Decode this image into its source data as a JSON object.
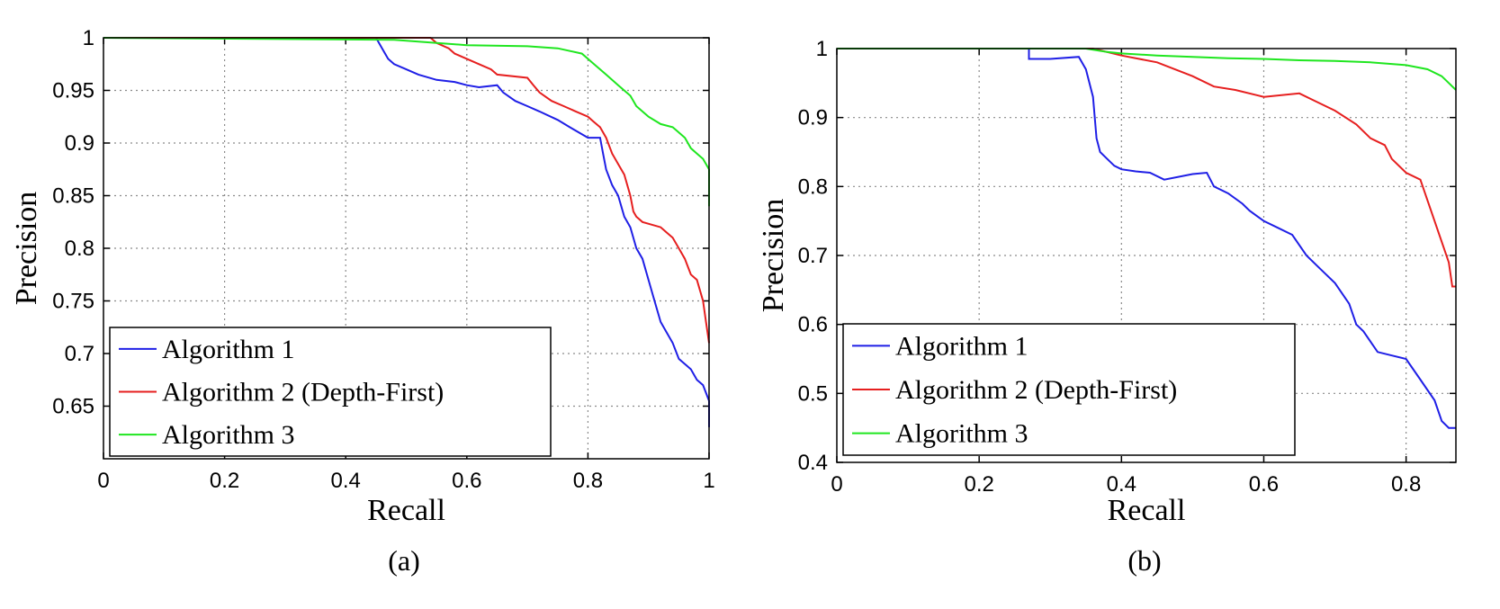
{
  "chart_data": [
    {
      "type": "line",
      "caption": "(a)",
      "xlabel": "Recall",
      "ylabel": "Precision",
      "xlim": [
        0,
        1
      ],
      "ylim": [
        0.6,
        1
      ],
      "xticks": [
        "0",
        "0.2",
        "0.4",
        "0.6",
        "0.8",
        "1"
      ],
      "yticks": [
        "0.65",
        "0.7",
        "0.75",
        "0.8",
        "0.85",
        "0.9",
        "0.95",
        "1"
      ],
      "grid": true,
      "legend_position": "bottom-left",
      "series": [
        {
          "name": "Algorithm 1",
          "color": "#1f1fe6",
          "points": [
            [
              0,
              1
            ],
            [
              0.45,
              1
            ],
            [
              0.46,
              0.99
            ],
            [
              0.47,
              0.98
            ],
            [
              0.48,
              0.975
            ],
            [
              0.5,
              0.97
            ],
            [
              0.52,
              0.965
            ],
            [
              0.55,
              0.96
            ],
            [
              0.58,
              0.958
            ],
            [
              0.6,
              0.955
            ],
            [
              0.62,
              0.953
            ],
            [
              0.65,
              0.955
            ],
            [
              0.66,
              0.948
            ],
            [
              0.68,
              0.94
            ],
            [
              0.7,
              0.935
            ],
            [
              0.72,
              0.93
            ],
            [
              0.75,
              0.922
            ],
            [
              0.77,
              0.915
            ],
            [
              0.8,
              0.905
            ],
            [
              0.82,
              0.905
            ],
            [
              0.825,
              0.89
            ],
            [
              0.83,
              0.875
            ],
            [
              0.84,
              0.86
            ],
            [
              0.85,
              0.85
            ],
            [
              0.86,
              0.83
            ],
            [
              0.87,
              0.82
            ],
            [
              0.88,
              0.8
            ],
            [
              0.89,
              0.79
            ],
            [
              0.9,
              0.77
            ],
            [
              0.91,
              0.75
            ],
            [
              0.92,
              0.73
            ],
            [
              0.93,
              0.72
            ],
            [
              0.94,
              0.71
            ],
            [
              0.95,
              0.695
            ],
            [
              0.97,
              0.685
            ],
            [
              0.98,
              0.675
            ],
            [
              0.99,
              0.67
            ],
            [
              1.0,
              0.655
            ],
            [
              1.0,
              0.63
            ]
          ]
        },
        {
          "name": "Algorithm 2 (Depth-First)",
          "color": "#e61f1f",
          "points": [
            [
              0,
              1
            ],
            [
              0.54,
              1
            ],
            [
              0.55,
              0.995
            ],
            [
              0.57,
              0.99
            ],
            [
              0.58,
              0.985
            ],
            [
              0.6,
              0.98
            ],
            [
              0.62,
              0.975
            ],
            [
              0.64,
              0.97
            ],
            [
              0.65,
              0.965
            ],
            [
              0.7,
              0.962
            ],
            [
              0.71,
              0.955
            ],
            [
              0.72,
              0.948
            ],
            [
              0.74,
              0.94
            ],
            [
              0.76,
              0.935
            ],
            [
              0.78,
              0.93
            ],
            [
              0.8,
              0.925
            ],
            [
              0.81,
              0.92
            ],
            [
              0.82,
              0.915
            ],
            [
              0.83,
              0.905
            ],
            [
              0.84,
              0.89
            ],
            [
              0.85,
              0.88
            ],
            [
              0.86,
              0.87
            ],
            [
              0.87,
              0.85
            ],
            [
              0.875,
              0.835
            ],
            [
              0.88,
              0.83
            ],
            [
              0.89,
              0.825
            ],
            [
              0.92,
              0.82
            ],
            [
              0.93,
              0.815
            ],
            [
              0.94,
              0.81
            ],
            [
              0.95,
              0.8
            ],
            [
              0.96,
              0.79
            ],
            [
              0.97,
              0.775
            ],
            [
              0.98,
              0.77
            ],
            [
              0.99,
              0.75
            ],
            [
              0.995,
              0.73
            ],
            [
              1.0,
              0.71
            ]
          ]
        },
        {
          "name": "Algorithm 3",
          "color": "#1fe61f",
          "points": [
            [
              0,
              1
            ],
            [
              0.48,
              0.998
            ],
            [
              0.55,
              0.995
            ],
            [
              0.6,
              0.993
            ],
            [
              0.7,
              0.992
            ],
            [
              0.75,
              0.99
            ],
            [
              0.79,
              0.985
            ],
            [
              0.81,
              0.975
            ],
            [
              0.83,
              0.965
            ],
            [
              0.85,
              0.955
            ],
            [
              0.87,
              0.945
            ],
            [
              0.88,
              0.935
            ],
            [
              0.9,
              0.925
            ],
            [
              0.92,
              0.918
            ],
            [
              0.94,
              0.915
            ],
            [
              0.95,
              0.91
            ],
            [
              0.96,
              0.905
            ],
            [
              0.97,
              0.895
            ],
            [
              0.98,
              0.89
            ],
            [
              0.99,
              0.885
            ],
            [
              1.0,
              0.875
            ],
            [
              1.0,
              0.84
            ]
          ]
        }
      ]
    },
    {
      "type": "line",
      "caption": "(b)",
      "xlabel": "Recall",
      "ylabel": "Precision",
      "xlim": [
        0,
        0.87
      ],
      "ylim": [
        0.4,
        1
      ],
      "xticks": [
        "0",
        "0.2",
        "0.4",
        "0.6",
        "0.8"
      ],
      "yticks": [
        "0.4",
        "0.5",
        "0.6",
        "0.7",
        "0.8",
        "0.9",
        "1"
      ],
      "grid": true,
      "legend_position": "bottom-left",
      "series": [
        {
          "name": "Algorithm 1",
          "color": "#1f1fe6",
          "points": [
            [
              0,
              1
            ],
            [
              0.27,
              1
            ],
            [
              0.27,
              0.985
            ],
            [
              0.3,
              0.985
            ],
            [
              0.34,
              0.988
            ],
            [
              0.35,
              0.97
            ],
            [
              0.36,
              0.93
            ],
            [
              0.365,
              0.87
            ],
            [
              0.37,
              0.85
            ],
            [
              0.38,
              0.84
            ],
            [
              0.39,
              0.83
            ],
            [
              0.4,
              0.825
            ],
            [
              0.42,
              0.822
            ],
            [
              0.44,
              0.82
            ],
            [
              0.46,
              0.81
            ],
            [
              0.5,
              0.818
            ],
            [
              0.52,
              0.82
            ],
            [
              0.53,
              0.8
            ],
            [
              0.55,
              0.79
            ],
            [
              0.57,
              0.775
            ],
            [
              0.58,
              0.765
            ],
            [
              0.6,
              0.75
            ],
            [
              0.62,
              0.74
            ],
            [
              0.64,
              0.73
            ],
            [
              0.66,
              0.7
            ],
            [
              0.68,
              0.68
            ],
            [
              0.7,
              0.66
            ],
            [
              0.72,
              0.63
            ],
            [
              0.73,
              0.6
            ],
            [
              0.74,
              0.59
            ],
            [
              0.76,
              0.56
            ],
            [
              0.78,
              0.555
            ],
            [
              0.8,
              0.55
            ],
            [
              0.82,
              0.52
            ],
            [
              0.84,
              0.49
            ],
            [
              0.85,
              0.46
            ],
            [
              0.86,
              0.45
            ],
            [
              0.87,
              0.45
            ]
          ]
        },
        {
          "name": "Algorithm 2 (Depth-First)",
          "color": "#e61f1f",
          "points": [
            [
              0,
              1
            ],
            [
              0.36,
              1
            ],
            [
              0.4,
              0.99
            ],
            [
              0.45,
              0.98
            ],
            [
              0.5,
              0.96
            ],
            [
              0.53,
              0.945
            ],
            [
              0.56,
              0.94
            ],
            [
              0.6,
              0.93
            ],
            [
              0.65,
              0.935
            ],
            [
              0.67,
              0.925
            ],
            [
              0.7,
              0.91
            ],
            [
              0.73,
              0.89
            ],
            [
              0.75,
              0.87
            ],
            [
              0.77,
              0.86
            ],
            [
              0.78,
              0.84
            ],
            [
              0.8,
              0.82
            ],
            [
              0.82,
              0.81
            ],
            [
              0.83,
              0.78
            ],
            [
              0.84,
              0.75
            ],
            [
              0.85,
              0.72
            ],
            [
              0.86,
              0.69
            ],
            [
              0.865,
              0.655
            ],
            [
              0.87,
              0.655
            ]
          ]
        },
        {
          "name": "Algorithm 3",
          "color": "#1fe61f",
          "points": [
            [
              0,
              1
            ],
            [
              0.35,
              1
            ],
            [
              0.38,
              0.995
            ],
            [
              0.4,
              0.993
            ],
            [
              0.45,
              0.99
            ],
            [
              0.5,
              0.988
            ],
            [
              0.55,
              0.986
            ],
            [
              0.6,
              0.985
            ],
            [
              0.65,
              0.983
            ],
            [
              0.7,
              0.982
            ],
            [
              0.75,
              0.98
            ],
            [
              0.8,
              0.976
            ],
            [
              0.83,
              0.97
            ],
            [
              0.85,
              0.96
            ],
            [
              0.86,
              0.95
            ],
            [
              0.87,
              0.94
            ]
          ]
        }
      ]
    }
  ]
}
